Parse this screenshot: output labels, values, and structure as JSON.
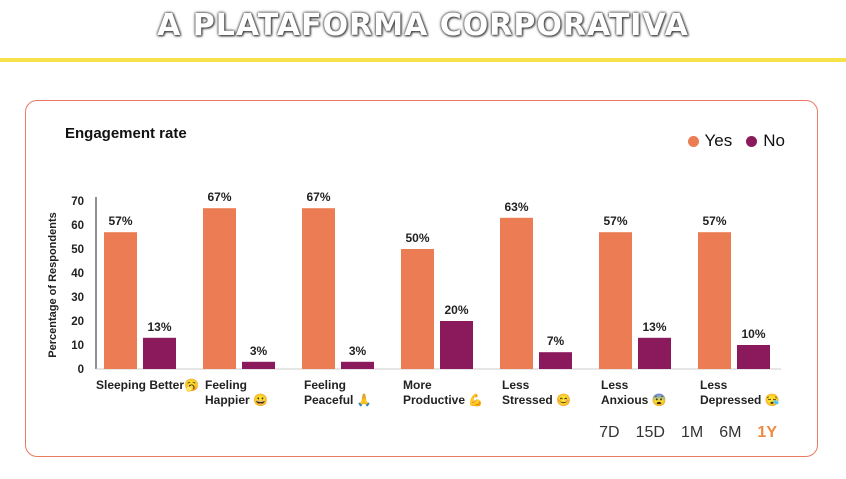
{
  "banner": {
    "title": "A PLATAFORMA CORPORATIVA"
  },
  "tabs": [
    {
      "label": "7D",
      "active": false
    },
    {
      "label": "15D",
      "active": false
    },
    {
      "label": "1M",
      "active": false
    },
    {
      "label": "6M",
      "active": false
    },
    {
      "label": "1Y",
      "active": true
    }
  ],
  "colors": {
    "yes": "#ec7c53",
    "no": "#8a1a5c",
    "border": "#ec7a63",
    "banner_line": "#f5e14a",
    "active_tab": "#f0883f"
  },
  "chart_data": {
    "type": "bar",
    "title": "Engagement rate",
    "ylabel": "Percentage of Respondents",
    "xlabel": "",
    "ylim": [
      0,
      70
    ],
    "yticks": [
      0,
      10,
      20,
      30,
      40,
      50,
      60,
      70
    ],
    "legend_position": "top-right",
    "categories": [
      [
        "Sleeping Better🥱"
      ],
      [
        "Feeling",
        "Happier 😀"
      ],
      [
        "Feeling",
        "Peaceful 🙏"
      ],
      [
        "More",
        "Productive 💪"
      ],
      [
        "Less",
        "Stressed 😊"
      ],
      [
        "Less",
        "Anxious 😨"
      ],
      [
        "Less",
        "Depressed 😪"
      ]
    ],
    "series": [
      {
        "name": "Yes",
        "values": [
          57,
          67,
          67,
          50,
          63,
          57,
          57
        ],
        "labels": [
          "57%",
          "67%",
          "67%",
          "50%",
          "63%",
          "57%",
          "57%"
        ]
      },
      {
        "name": "No",
        "values": [
          13,
          3,
          3,
          20,
          7,
          13,
          10
        ],
        "labels": [
          "13%",
          "3%",
          "3%",
          "20%",
          "7%",
          "13%",
          "10%"
        ]
      }
    ]
  }
}
